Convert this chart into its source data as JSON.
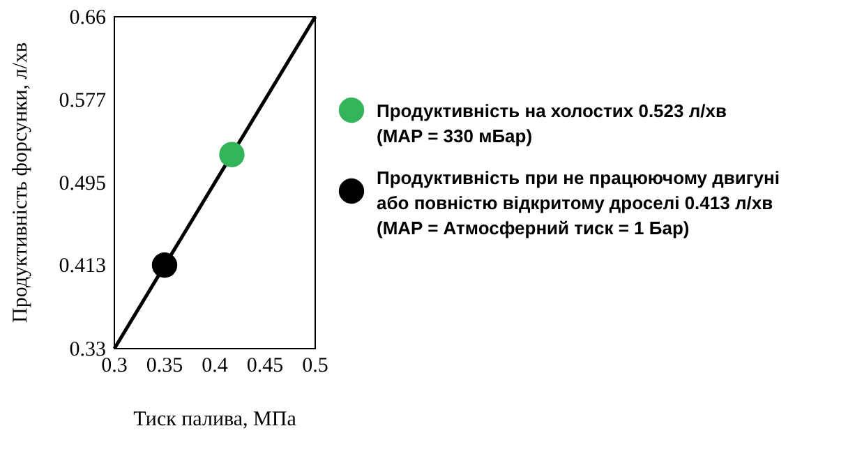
{
  "chart_data": {
    "type": "line",
    "xlabel": "Тиск палива, МПа",
    "ylabel": "Продуктивність форсунки, л/хв",
    "xlim": [
      0.3,
      0.5
    ],
    "xticks": [
      0.3,
      0.35,
      0.4,
      0.45,
      0.5
    ],
    "ylim": [
      0.33,
      0.66
    ],
    "yticks": [
      0.33,
      0.413,
      0.495,
      0.577,
      0.66
    ],
    "grid": false,
    "legend": "right",
    "series": [
      {
        "color": "#000000",
        "x": [
          0.3,
          0.5
        ],
        "values": [
          0.33,
          0.66
        ],
        "line_style": "solid",
        "marker": "none"
      },
      {
        "type": "scatter",
        "name": "Продуктивність на холостих 0.523 л/хв\n(MAP = 330 мБар)",
        "color": "#33b35a",
        "x": [
          0.417
        ],
        "values": [
          0.523
        ],
        "marker": "circle"
      },
      {
        "type": "scatter",
        "name": "Продуктивність при не працюючому двигуні\nабо повністю відкритому дроселі 0.413 л/хв\n(MAP = Атмосферний тиск = 1 Бар)",
        "color": "#000000",
        "x": [
          0.35
        ],
        "values": [
          0.413
        ],
        "marker": "circle"
      }
    ]
  }
}
